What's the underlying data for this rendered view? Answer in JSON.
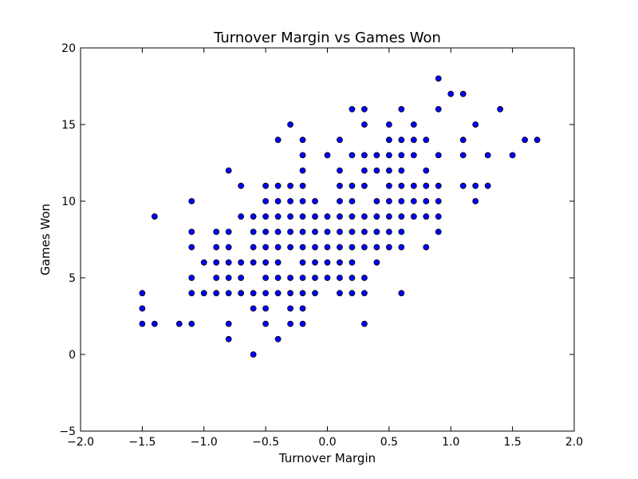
{
  "chart_data": {
    "type": "scatter",
    "title": "Turnover Margin vs Games Won",
    "xlabel": "Turnover Margin",
    "ylabel": "Games Won",
    "xlim": [
      -2.0,
      2.0
    ],
    "ylim": [
      -5,
      20
    ],
    "xticks": [
      "−2.0",
      "−1.5",
      "−1.0",
      "−0.5",
      "0.0",
      "0.5",
      "1.0",
      "1.5",
      "2.0"
    ],
    "yticks": [
      "−5",
      "0",
      "5",
      "10",
      "15",
      "20"
    ],
    "grid": false,
    "marker_color": "#0000ff",
    "marker_edge": "#000000",
    "points": [
      [
        -1.5,
        4
      ],
      [
        -1.5,
        3
      ],
      [
        -1.5,
        2
      ],
      [
        -1.4,
        9
      ],
      [
        -1.4,
        2
      ],
      [
        -1.2,
        2
      ],
      [
        -1.1,
        10
      ],
      [
        -1.1,
        8
      ],
      [
        -1.1,
        7
      ],
      [
        -1.1,
        5
      ],
      [
        -1.1,
        4
      ],
      [
        -1.1,
        2
      ],
      [
        -1.0,
        6
      ],
      [
        -1.0,
        4
      ],
      [
        -0.9,
        8
      ],
      [
        -0.9,
        7
      ],
      [
        -0.9,
        6
      ],
      [
        -0.9,
        5
      ],
      [
        -0.9,
        4
      ],
      [
        -0.8,
        12
      ],
      [
        -0.8,
        8
      ],
      [
        -0.8,
        7
      ],
      [
        -0.8,
        6
      ],
      [
        -0.8,
        5
      ],
      [
        -0.8,
        4
      ],
      [
        -0.8,
        2
      ],
      [
        -0.8,
        1
      ],
      [
        -0.7,
        11
      ],
      [
        -0.7,
        9
      ],
      [
        -0.7,
        6
      ],
      [
        -0.7,
        5
      ],
      [
        -0.7,
        4
      ],
      [
        -0.6,
        9
      ],
      [
        -0.6,
        8
      ],
      [
        -0.6,
        7
      ],
      [
        -0.6,
        6
      ],
      [
        -0.6,
        4
      ],
      [
        -0.6,
        3
      ],
      [
        -0.6,
        0
      ],
      [
        -0.5,
        11
      ],
      [
        -0.5,
        10
      ],
      [
        -0.5,
        9
      ],
      [
        -0.5,
        8
      ],
      [
        -0.5,
        7
      ],
      [
        -0.5,
        6
      ],
      [
        -0.5,
        5
      ],
      [
        -0.5,
        4
      ],
      [
        -0.5,
        3
      ],
      [
        -0.5,
        2
      ],
      [
        -0.4,
        14
      ],
      [
        -0.4,
        11
      ],
      [
        -0.4,
        10
      ],
      [
        -0.4,
        9
      ],
      [
        -0.4,
        8
      ],
      [
        -0.4,
        7
      ],
      [
        -0.4,
        6
      ],
      [
        -0.4,
        5
      ],
      [
        -0.4,
        4
      ],
      [
        -0.4,
        1
      ],
      [
        -0.3,
        15
      ],
      [
        -0.3,
        11
      ],
      [
        -0.3,
        10
      ],
      [
        -0.3,
        9
      ],
      [
        -0.3,
        8
      ],
      [
        -0.3,
        7
      ],
      [
        -0.3,
        5
      ],
      [
        -0.3,
        4
      ],
      [
        -0.3,
        3
      ],
      [
        -0.3,
        2
      ],
      [
        -0.2,
        14
      ],
      [
        -0.2,
        13
      ],
      [
        -0.2,
        12
      ],
      [
        -0.2,
        11
      ],
      [
        -0.2,
        10
      ],
      [
        -0.2,
        9
      ],
      [
        -0.2,
        8
      ],
      [
        -0.2,
        7
      ],
      [
        -0.2,
        6
      ],
      [
        -0.2,
        5
      ],
      [
        -0.2,
        4
      ],
      [
        -0.2,
        3
      ],
      [
        -0.2,
        2
      ],
      [
        -0.1,
        10
      ],
      [
        -0.1,
        9
      ],
      [
        -0.1,
        8
      ],
      [
        -0.1,
        7
      ],
      [
        -0.1,
        6
      ],
      [
        -0.1,
        5
      ],
      [
        -0.1,
        4
      ],
      [
        0.0,
        13
      ],
      [
        0.0,
        9
      ],
      [
        0.0,
        8
      ],
      [
        0.0,
        7
      ],
      [
        0.0,
        6
      ],
      [
        0.0,
        5
      ],
      [
        0.1,
        14
      ],
      [
        0.1,
        12
      ],
      [
        0.1,
        11
      ],
      [
        0.1,
        10
      ],
      [
        0.1,
        9
      ],
      [
        0.1,
        8
      ],
      [
        0.1,
        7
      ],
      [
        0.1,
        6
      ],
      [
        0.1,
        5
      ],
      [
        0.1,
        4
      ],
      [
        0.2,
        16
      ],
      [
        0.2,
        13
      ],
      [
        0.2,
        11
      ],
      [
        0.2,
        10
      ],
      [
        0.2,
        9
      ],
      [
        0.2,
        8
      ],
      [
        0.2,
        7
      ],
      [
        0.2,
        6
      ],
      [
        0.2,
        5
      ],
      [
        0.2,
        4
      ],
      [
        0.3,
        16
      ],
      [
        0.3,
        15
      ],
      [
        0.3,
        13
      ],
      [
        0.3,
        12
      ],
      [
        0.3,
        11
      ],
      [
        0.3,
        9
      ],
      [
        0.3,
        8
      ],
      [
        0.3,
        7
      ],
      [
        0.3,
        5
      ],
      [
        0.3,
        4
      ],
      [
        0.3,
        2
      ],
      [
        0.4,
        13
      ],
      [
        0.4,
        12
      ],
      [
        0.4,
        10
      ],
      [
        0.4,
        9
      ],
      [
        0.4,
        8
      ],
      [
        0.4,
        7
      ],
      [
        0.4,
        6
      ],
      [
        0.5,
        15
      ],
      [
        0.5,
        14
      ],
      [
        0.5,
        13
      ],
      [
        0.5,
        12
      ],
      [
        0.5,
        11
      ],
      [
        0.5,
        10
      ],
      [
        0.5,
        9
      ],
      [
        0.5,
        8
      ],
      [
        0.5,
        7
      ],
      [
        0.6,
        16
      ],
      [
        0.6,
        14
      ],
      [
        0.6,
        13
      ],
      [
        0.6,
        12
      ],
      [
        0.6,
        11
      ],
      [
        0.6,
        10
      ],
      [
        0.6,
        9
      ],
      [
        0.6,
        8
      ],
      [
        0.6,
        7
      ],
      [
        0.6,
        4
      ],
      [
        0.7,
        15
      ],
      [
        0.7,
        14
      ],
      [
        0.7,
        13
      ],
      [
        0.7,
        11
      ],
      [
        0.7,
        10
      ],
      [
        0.7,
        9
      ],
      [
        0.8,
        14
      ],
      [
        0.8,
        12
      ],
      [
        0.8,
        11
      ],
      [
        0.8,
        10
      ],
      [
        0.8,
        9
      ],
      [
        0.8,
        7
      ],
      [
        0.9,
        18
      ],
      [
        0.9,
        16
      ],
      [
        0.9,
        13
      ],
      [
        0.9,
        11
      ],
      [
        0.9,
        10
      ],
      [
        0.9,
        9
      ],
      [
        0.9,
        8
      ],
      [
        1.0,
        17
      ],
      [
        1.1,
        17
      ],
      [
        1.1,
        14
      ],
      [
        1.1,
        13
      ],
      [
        1.1,
        11
      ],
      [
        1.2,
        15
      ],
      [
        1.2,
        11
      ],
      [
        1.2,
        10
      ],
      [
        1.3,
        13
      ],
      [
        1.3,
        11
      ],
      [
        1.4,
        16
      ],
      [
        1.5,
        13
      ],
      [
        1.6,
        14
      ],
      [
        1.7,
        14
      ]
    ]
  }
}
